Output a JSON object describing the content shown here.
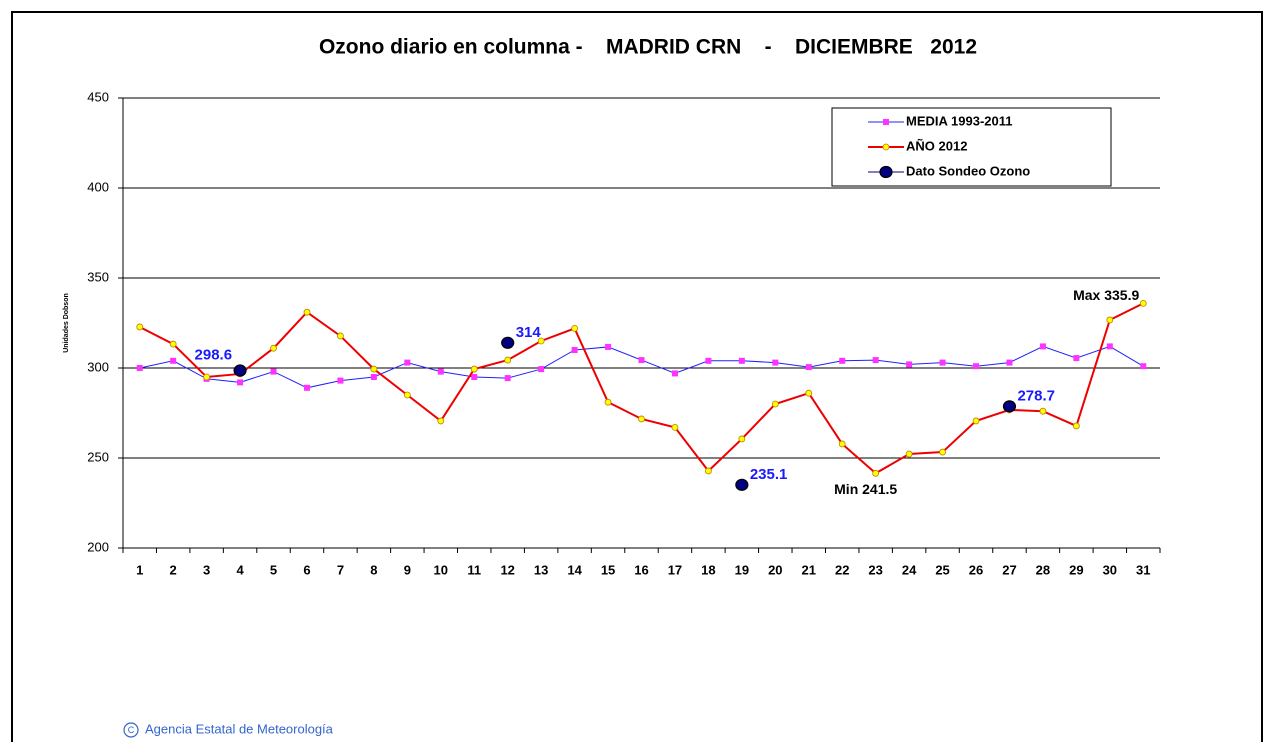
{
  "chart_data": {
    "type": "line",
    "title": "Ozono diario en columna -    MADRID CRN    -    DICIEMBRE   2012",
    "y_label": "Unidades Dobson",
    "categories": [
      "1",
      "2",
      "3",
      "4",
      "5",
      "6",
      "7",
      "8",
      "9",
      "10",
      "11",
      "12",
      "13",
      "14",
      "15",
      "16",
      "17",
      "18",
      "19",
      "20",
      "21",
      "22",
      "23",
      "24",
      "25",
      "26",
      "27",
      "28",
      "29",
      "30",
      "31"
    ],
    "series": [
      {
        "name": "MEDIA 1993-2011",
        "color": "#2020ff",
        "marker_color": "#ff33ff",
        "marker": "square",
        "values": [
          300,
          304,
          294,
          292,
          298,
          289,
          293,
          295,
          303,
          298,
          295,
          294.4,
          299.4,
          310,
          311.7,
          304.4,
          297,
          304,
          304,
          303,
          300.5,
          304,
          304.4,
          302,
          303,
          301,
          303,
          312,
          305.5,
          312,
          301
        ]
      },
      {
        "name": "AÑO 2012",
        "color": "#ee0000",
        "marker_color": "#ffff00",
        "marker": "circle",
        "values": [
          322.8,
          313.3,
          295,
          296.7,
          311,
          331,
          317.8,
          299.4,
          285,
          270.6,
          299.4,
          304.4,
          315,
          322,
          281,
          271.7,
          267,
          242.8,
          260.6,
          280,
          286,
          257.8,
          241.5,
          252.2,
          253.3,
          270.6,
          276.7,
          276,
          267.8,
          326.7,
          335.9
        ]
      },
      {
        "name": "Dato Sondeo Ozono",
        "color": "#000080",
        "marker_color": "#000080",
        "marker": "dot",
        "show_labels": true,
        "values": [
          null,
          null,
          null,
          298.6,
          null,
          null,
          null,
          null,
          null,
          null,
          null,
          314,
          null,
          null,
          null,
          null,
          null,
          null,
          235.1,
          null,
          null,
          null,
          null,
          null,
          null,
          null,
          278.7,
          null,
          null,
          null,
          null
        ]
      }
    ],
    "annotations": [
      "Max 335.9",
      "Min 241.5"
    ],
    "ylim": [
      200,
      450
    ],
    "yticks": [
      200,
      250,
      300,
      350,
      400,
      450
    ],
    "grid": true,
    "legend": "upper right",
    "footer": "Agencia Estatal de Meteorología"
  }
}
